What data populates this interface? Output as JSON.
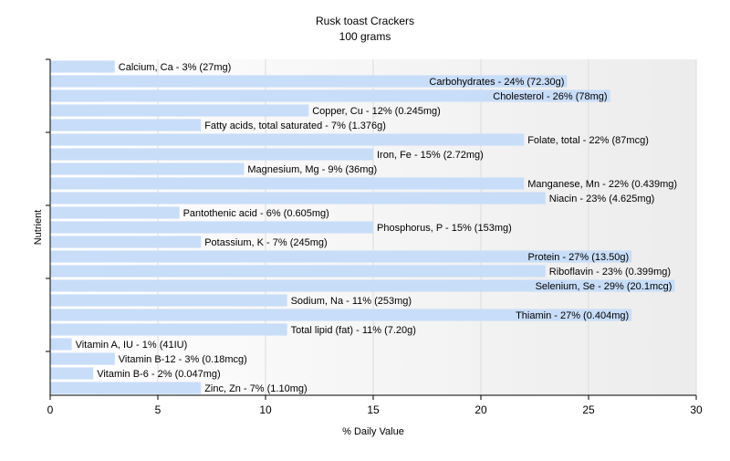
{
  "chart_data": {
    "type": "bar",
    "orientation": "horizontal",
    "title": "Rusk toast Crackers",
    "subtitle": "100 grams",
    "xlabel": "% Daily Value",
    "ylabel": "Nutrient",
    "xlim": [
      0,
      30
    ],
    "xticks": [
      0,
      5,
      10,
      15,
      20,
      25,
      30
    ],
    "grid": "vertical",
    "bar_color": "#c8ddf8",
    "bars": [
      {
        "value": 3,
        "label": "Calcium, Ca - 3% (27mg)"
      },
      {
        "value": 24,
        "label": "Carbohydrates - 24% (72.30g)"
      },
      {
        "value": 26,
        "label": "Cholesterol - 26% (78mg)"
      },
      {
        "value": 12,
        "label": "Copper, Cu - 12% (0.245mg)"
      },
      {
        "value": 7,
        "label": "Fatty acids, total saturated - 7% (1.376g)"
      },
      {
        "value": 22,
        "label": "Folate, total - 22% (87mcg)"
      },
      {
        "value": 15,
        "label": "Iron, Fe - 15% (2.72mg)"
      },
      {
        "value": 9,
        "label": "Magnesium, Mg - 9% (36mg)"
      },
      {
        "value": 22,
        "label": "Manganese, Mn - 22% (0.439mg)"
      },
      {
        "value": 23,
        "label": "Niacin - 23% (4.625mg)"
      },
      {
        "value": 6,
        "label": "Pantothenic acid - 6% (0.605mg)"
      },
      {
        "value": 15,
        "label": "Phosphorus, P - 15% (153mg)"
      },
      {
        "value": 7,
        "label": "Potassium, K - 7% (245mg)"
      },
      {
        "value": 27,
        "label": "Protein - 27% (13.50g)"
      },
      {
        "value": 23,
        "label": "Riboflavin - 23% (0.399mg)"
      },
      {
        "value": 29,
        "label": "Selenium, Se - 29% (20.1mcg)"
      },
      {
        "value": 11,
        "label": "Sodium, Na - 11% (253mg)"
      },
      {
        "value": 27,
        "label": "Thiamin - 27% (0.404mg)"
      },
      {
        "value": 11,
        "label": "Total lipid (fat) - 11% (7.20g)"
      },
      {
        "value": 1,
        "label": "Vitamin A, IU - 1% (41IU)"
      },
      {
        "value": 3,
        "label": "Vitamin B-12 - 3% (0.18mcg)"
      },
      {
        "value": 2,
        "label": "Vitamin B-6 - 2% (0.047mg)"
      },
      {
        "value": 7,
        "label": "Zinc, Zn - 7% (1.10mg)"
      }
    ]
  }
}
